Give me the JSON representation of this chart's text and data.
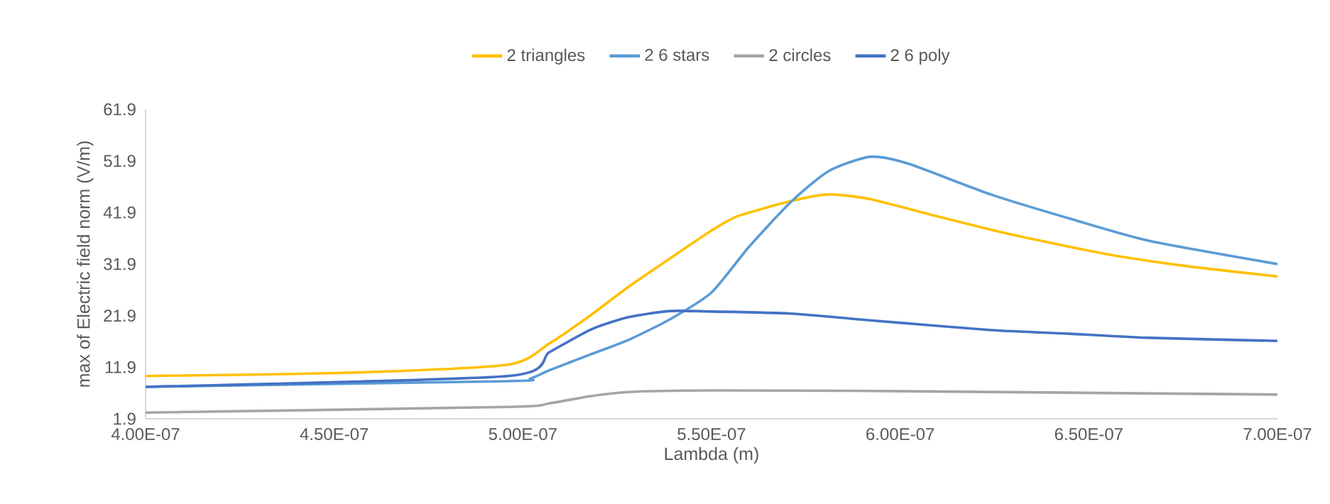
{
  "chart_data": {
    "type": "line",
    "xlabel": "Lambda (m)",
    "ylabel": "max of Electric field norm (V/m)",
    "xlim": [
      4e-07,
      7e-07
    ],
    "xticks": [
      {
        "value": 4e-07,
        "label": "4.00E-07"
      },
      {
        "value": 4.5e-07,
        "label": "4.50E-07"
      },
      {
        "value": 5e-07,
        "label": "5.00E-07"
      },
      {
        "value": 5.5e-07,
        "label": "5.50E-07"
      },
      {
        "value": 6e-07,
        "label": "6.00E-07"
      },
      {
        "value": 6.5e-07,
        "label": "6.50E-07"
      },
      {
        "value": 7e-07,
        "label": "7.00E-07"
      }
    ],
    "ylim": [
      1.9,
      61.9
    ],
    "yticks": [
      1.9,
      11.9,
      21.9,
      31.9,
      41.9,
      51.9,
      61.9
    ],
    "grid": false,
    "legend": "top",
    "marker": "none",
    "line_style": "solid",
    "series": [
      {
        "name": "2 triangles",
        "color": "#ffc000",
        "x": [
          4e-07,
          4.52e-07,
          4.96e-07,
          5.07e-07,
          5.18e-07,
          5.28e-07,
          5.39e-07,
          5.5e-07,
          5.57e-07,
          5.71e-07,
          5.81e-07,
          5.92e-07,
          6.08e-07,
          6.29e-07,
          6.55e-07,
          6.76e-07,
          7e-07
        ],
        "values": [
          10.2,
          10.8,
          12.4,
          16.5,
          22.0,
          27.5,
          33.0,
          38.4,
          41.2,
          44.1,
          45.4,
          44.5,
          41.5,
          37.7,
          33.8,
          31.5,
          29.5
        ]
      },
      {
        "name": "2 6 stars",
        "color": "#5b9bd5",
        "x": [
          4e-07,
          4.96e-07,
          5.02e-07,
          5.07e-07,
          5.18e-07,
          5.28e-07,
          5.39e-07,
          5.5e-07,
          5.6e-07,
          5.71e-07,
          5.81e-07,
          5.92e-07,
          6.02e-07,
          6.24e-07,
          6.45e-07,
          6.66e-07,
          7e-07
        ],
        "values": [
          8.1,
          9.2,
          9.7,
          11.3,
          14.4,
          17.2,
          21.2,
          26.4,
          35.3,
          43.9,
          49.9,
          52.7,
          51.4,
          45.4,
          40.7,
          36.4,
          31.9
        ]
      },
      {
        "name": "2 circles",
        "color": "#a5a5a5",
        "x": [
          4e-07,
          4.96e-07,
          5.07e-07,
          5.18e-07,
          5.28e-07,
          5.5e-07,
          5.92e-07,
          7e-07
        ],
        "values": [
          3.1,
          4.2,
          4.9,
          6.3,
          7.1,
          7.4,
          7.3,
          6.6
        ]
      },
      {
        "name": "2 6 poly",
        "color": "#4472c4",
        "x": [
          4e-07,
          4.96e-07,
          5.07e-07,
          5.18e-07,
          5.28e-07,
          5.39e-07,
          5.5e-07,
          5.71e-07,
          5.92e-07,
          6.24e-07,
          6.45e-07,
          6.66e-07,
          7e-07
        ],
        "values": [
          8.1,
          10.2,
          14.8,
          19.2,
          21.6,
          22.8,
          22.7,
          22.3,
          21.0,
          19.1,
          18.4,
          17.6,
          17.0
        ]
      }
    ]
  }
}
